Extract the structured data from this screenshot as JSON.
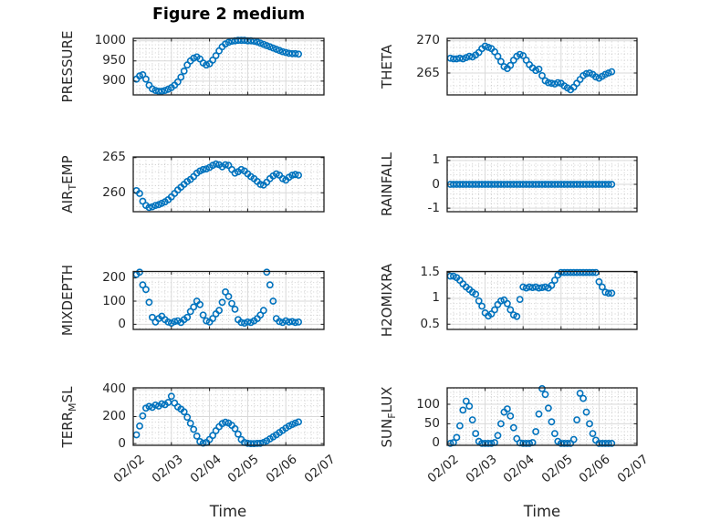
{
  "figure": {
    "title": "Figure 2 medium",
    "xlabel": "Time",
    "xticks": [
      "02/02",
      "02/03",
      "02/04",
      "02/05",
      "02/06",
      "02/07"
    ],
    "xlim_days": [
      0,
      5
    ],
    "marker_color": "#0072BD",
    "axis_color": "#262626",
    "background": "#ffffff"
  },
  "chart_data": [
    {
      "id": "pressure",
      "name": "PRESSURE",
      "type": "scatter",
      "ylabel_parts": [
        {
          "text": "PRESSURE",
          "sub": false
        }
      ],
      "yticks": [
        900,
        950,
        1000
      ],
      "ytick_labels": [
        "900",
        "950",
        "1000"
      ],
      "ylim": [
        866,
        1006
      ],
      "yminor": 10,
      "x_start_hours": 2,
      "x_step_hours": 2,
      "values": [
        905,
        913,
        916,
        905,
        890,
        881,
        877,
        875,
        875,
        877,
        880,
        884,
        890,
        898,
        910,
        925,
        940,
        950,
        957,
        960,
        955,
        945,
        940,
        943,
        952,
        963,
        975,
        985,
        992,
        996,
        999,
        1000,
        1001,
        1001,
        1001,
        1000,
        1000,
        999,
        997,
        994,
        991,
        988,
        985,
        982,
        979,
        976,
        973,
        971,
        969,
        968,
        968,
        967
      ]
    },
    {
      "id": "theta",
      "name": "THETA",
      "type": "scatter",
      "ylabel_parts": [
        {
          "text": "THETA",
          "sub": false
        }
      ],
      "yticks": [
        265,
        270
      ],
      "ytick_labels": [
        "265",
        "270"
      ],
      "ylim": [
        261.6,
        270.4
      ],
      "yminor": 1,
      "x_start_hours": 2,
      "x_step_hours": 2,
      "values": [
        267.3,
        267.2,
        267.2,
        267.3,
        267.2,
        267.4,
        267.6,
        267.5,
        267.8,
        268.2,
        268.8,
        269.2,
        269.0,
        268.8,
        268.3,
        267.6,
        266.8,
        266.0,
        265.7,
        266.2,
        267.0,
        267.6,
        267.9,
        267.7,
        267.0,
        266.3,
        265.8,
        265.4,
        265.6,
        264.6,
        263.8,
        263.5,
        263.4,
        263.3,
        263.5,
        263.4,
        263.0,
        262.7,
        262.4,
        262.8,
        263.4,
        264.0,
        264.6,
        264.9,
        265.0,
        264.8,
        264.4,
        264.2,
        264.5,
        264.8,
        265.0,
        265.2
      ]
    },
    {
      "id": "air-temp",
      "name": "AIR_TEMP",
      "type": "scatter",
      "ylabel_parts": [
        {
          "text": "AIR",
          "sub": false
        },
        {
          "text": "T",
          "sub": true
        },
        {
          "text": "EMP",
          "sub": false
        }
      ],
      "yticks": [
        260,
        265
      ],
      "ytick_labels": [
        "260",
        "265"
      ],
      "ylim": [
        257.3,
        265.1
      ],
      "yminor": 1,
      "x_start_hours": 2,
      "x_step_hours": 2,
      "values": [
        260.3,
        259.9,
        258.8,
        258.2,
        257.9,
        258.0,
        258.2,
        258.3,
        258.5,
        258.7,
        259.0,
        259.4,
        259.9,
        260.4,
        260.8,
        261.2,
        261.6,
        261.9,
        262.3,
        262.8,
        263.1,
        263.3,
        263.4,
        263.6,
        263.9,
        264.1,
        264.0,
        263.7,
        264.0,
        263.9,
        263.3,
        262.8,
        263.0,
        263.3,
        263.1,
        262.7,
        262.3,
        262.0,
        261.6,
        261.2,
        261.1,
        261.5,
        262.0,
        262.4,
        262.7,
        262.5,
        262.0,
        261.8,
        262.2,
        262.5,
        262.6,
        262.5
      ]
    },
    {
      "id": "rainfall",
      "name": "RAINFALL",
      "type": "scatter",
      "ylabel_parts": [
        {
          "text": "RAINFALL",
          "sub": false
        }
      ],
      "yticks": [
        -1,
        0,
        1
      ],
      "ytick_labels": [
        "-1",
        "0",
        "1"
      ],
      "ylim": [
        -1.15,
        1.15
      ],
      "yminor": 0.2,
      "x_start_hours": 2,
      "x_step_hours": 2,
      "values": [
        0,
        0,
        0,
        0,
        0,
        0,
        0,
        0,
        0,
        0,
        0,
        0,
        0,
        0,
        0,
        0,
        0,
        0,
        0,
        0,
        0,
        0,
        0,
        0,
        0,
        0,
        0,
        0,
        0,
        0,
        0,
        0,
        0,
        0,
        0,
        0,
        0,
        0,
        0,
        0,
        0,
        0,
        0,
        0,
        0,
        0,
        0,
        0,
        0,
        0,
        0,
        0
      ]
    },
    {
      "id": "mixdepth",
      "name": "MIXDEPTH",
      "type": "scatter",
      "ylabel_parts": [
        {
          "text": "MIXDEPTH",
          "sub": false
        }
      ],
      "yticks": [
        0,
        100,
        200
      ],
      "ytick_labels": [
        "0",
        "100",
        "200"
      ],
      "ylim": [
        -22,
        228
      ],
      "yminor": 20,
      "x_start_hours": 2,
      "x_step_hours": 2,
      "values": [
        215,
        225,
        170,
        150,
        95,
        30,
        10,
        25,
        35,
        20,
        10,
        5,
        12,
        15,
        8,
        20,
        30,
        55,
        75,
        100,
        85,
        40,
        15,
        10,
        25,
        45,
        60,
        95,
        140,
        120,
        90,
        65,
        20,
        8,
        5,
        10,
        8,
        15,
        25,
        40,
        60,
        225,
        170,
        100,
        25,
        12,
        8,
        15,
        10,
        12,
        8,
        10
      ]
    },
    {
      "id": "h2omixra",
      "name": "H2OMIXRA",
      "type": "scatter",
      "ylabel_parts": [
        {
          "text": "H2OMIXRA",
          "sub": false
        }
      ],
      "yticks": [
        0.5,
        1,
        1.5
      ],
      "ytick_labels": [
        "0.5",
        "1",
        "1.5"
      ],
      "ylim": [
        0.4,
        1.52
      ],
      "yminor": 0.1,
      "x_start_hours": 2,
      "x_step_hours": 2,
      "values": [
        1.43,
        1.43,
        1.4,
        1.35,
        1.28,
        1.22,
        1.17,
        1.12,
        1.08,
        0.95,
        0.85,
        0.72,
        0.66,
        0.7,
        0.78,
        0.88,
        0.95,
        0.97,
        0.9,
        0.78,
        0.68,
        0.65,
        0.98,
        1.22,
        1.2,
        1.22,
        1.21,
        1.22,
        1.2,
        1.21,
        1.22,
        1.2,
        1.25,
        1.35,
        1.45,
        1.5,
        1.5,
        1.5,
        1.5,
        1.5,
        1.5,
        1.5,
        1.5,
        1.5,
        1.5,
        1.5,
        1.5,
        1.32,
        1.22,
        1.12,
        1.1,
        1.1
      ]
    },
    {
      "id": "terr-msl",
      "name": "TERR_MSL",
      "type": "scatter",
      "ylabel_parts": [
        {
          "text": "TERR",
          "sub": false
        },
        {
          "text": "M",
          "sub": true
        },
        {
          "text": "SL",
          "sub": false
        }
      ],
      "yticks": [
        0,
        200,
        400
      ],
      "ytick_labels": [
        "0",
        "200",
        "400"
      ],
      "ylim": [
        -13,
        413
      ],
      "yminor": 40,
      "x_start_hours": 2,
      "x_step_hours": 2,
      "values": [
        65,
        130,
        205,
        262,
        275,
        268,
        285,
        278,
        295,
        288,
        305,
        350,
        300,
        272,
        255,
        235,
        195,
        150,
        105,
        55,
        15,
        3,
        8,
        30,
        60,
        95,
        125,
        148,
        158,
        152,
        135,
        110,
        70,
        30,
        8,
        2,
        0,
        0,
        1,
        2,
        8,
        20,
        35,
        50,
        65,
        82,
        98,
        115,
        130,
        142,
        152,
        160
      ]
    },
    {
      "id": "sun-flux",
      "name": "SUN_FLUX",
      "type": "scatter",
      "ylabel_parts": [
        {
          "text": "SUN",
          "sub": false
        },
        {
          "text": "F",
          "sub": true
        },
        {
          "text": "LUX",
          "sub": false
        }
      ],
      "yticks": [
        0,
        50,
        100
      ],
      "ytick_labels": [
        "0",
        "50",
        "100"
      ],
      "ylim": [
        -5,
        142
      ],
      "yminor": 10,
      "x_start_hours": 2,
      "x_step_hours": 2,
      "values": [
        0,
        2,
        15,
        45,
        85,
        108,
        95,
        60,
        25,
        5,
        0,
        0,
        0,
        0,
        2,
        20,
        50,
        80,
        88,
        70,
        40,
        12,
        1,
        0,
        0,
        0,
        2,
        30,
        75,
        140,
        125,
        90,
        55,
        25,
        5,
        0,
        0,
        0,
        0,
        10,
        60,
        128,
        115,
        80,
        50,
        25,
        8,
        0,
        0,
        0,
        0,
        0
      ]
    }
  ]
}
